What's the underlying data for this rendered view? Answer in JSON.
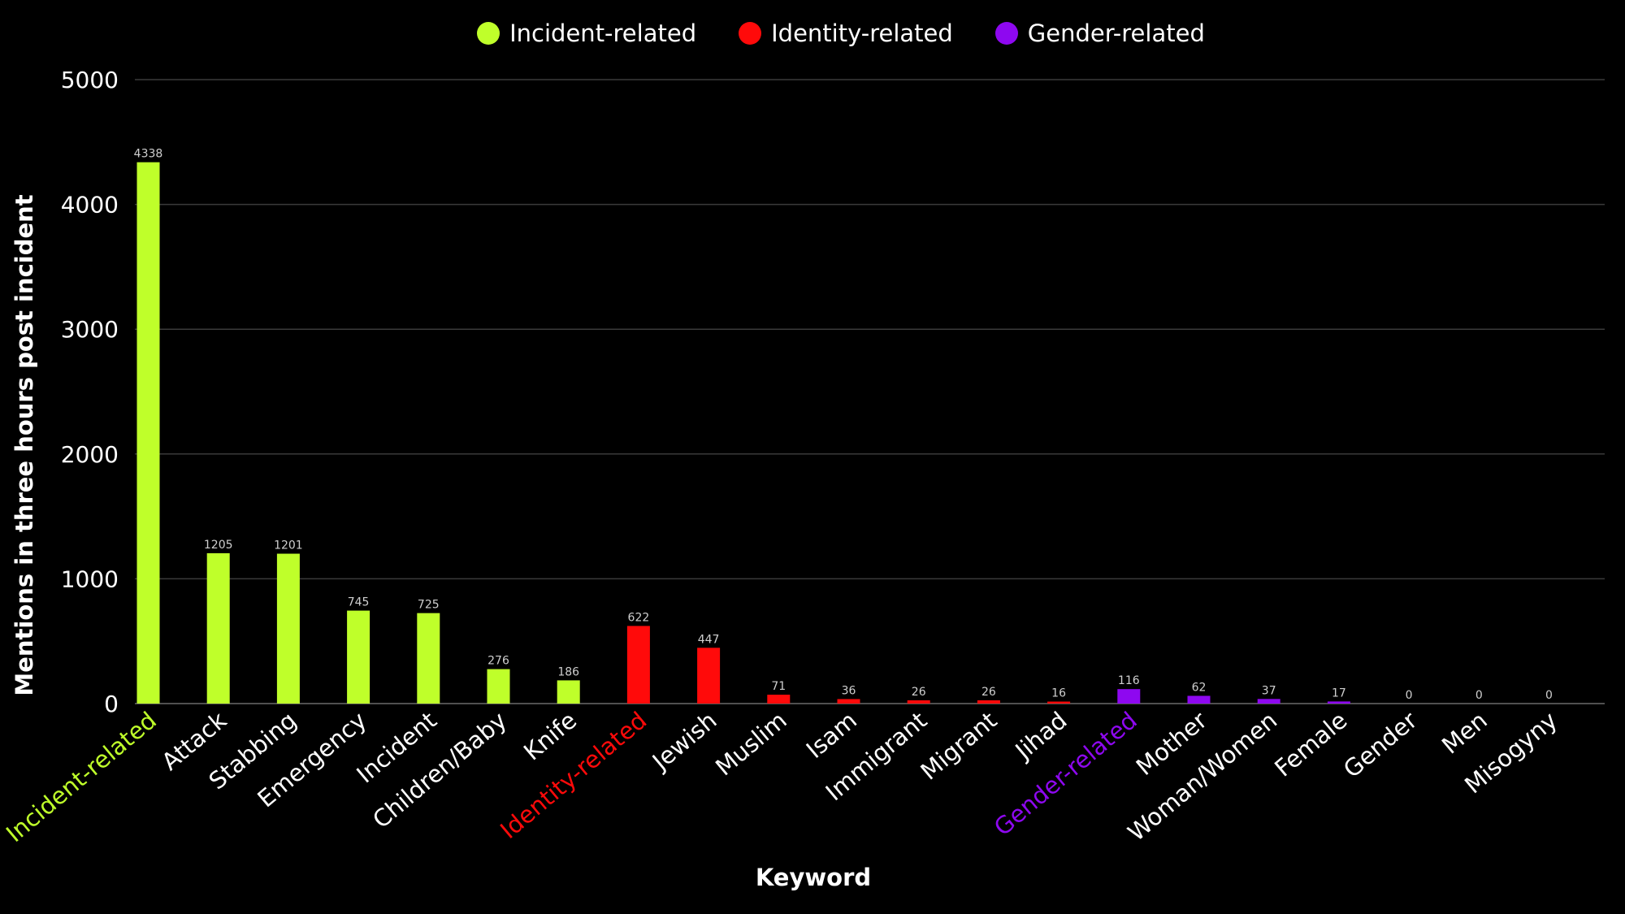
{
  "legend": [
    {
      "label": "Incident-related",
      "color": "#bfff2a"
    },
    {
      "label": "Identity-related",
      "color": "#ff0a0a"
    },
    {
      "label": "Gender-related",
      "color": "#8e08f0"
    }
  ],
  "chart_data": {
    "type": "bar",
    "title": "",
    "xlabel": "Keyword",
    "ylabel": "Mentions in three hours post incident",
    "ylim": [
      0,
      5000
    ],
    "yticks": [
      0,
      1000,
      2000,
      3000,
      4000,
      5000
    ],
    "grid": true,
    "legend_position": "top-center",
    "categories": [
      "Incident-related",
      "Attack",
      "Stabbing",
      "Emergency",
      "Incident",
      "Children/Baby",
      "Knife",
      "Identity-related",
      "Jewish",
      "Muslim",
      "Isam",
      "Immigrant",
      "Migrant",
      "Jihad",
      "Gender-related",
      "Mother",
      "Woman/Women",
      "Female",
      "Gender",
      "Men",
      "Misogyny"
    ],
    "values": [
      4338,
      1205,
      1201,
      745,
      725,
      276,
      186,
      622,
      447,
      71,
      36,
      26,
      26,
      16,
      116,
      62,
      37,
      17,
      0,
      0,
      0
    ],
    "value_labels": [
      "4338",
      "1205",
      "1201",
      "745",
      "725",
      "276",
      "186",
      "622",
      "447",
      "71",
      "36",
      "26",
      "26",
      "16",
      "116",
      "62",
      "37",
      "17",
      "0",
      "0",
      "0"
    ],
    "groups": [
      "incident",
      "incident",
      "incident",
      "incident",
      "incident",
      "incident",
      "incident",
      "identity",
      "identity",
      "identity",
      "identity",
      "identity",
      "identity",
      "identity",
      "gender",
      "gender",
      "gender",
      "gender",
      "gender",
      "gender",
      "gender"
    ],
    "group_header": [
      true,
      false,
      false,
      false,
      false,
      false,
      false,
      true,
      false,
      false,
      false,
      false,
      false,
      false,
      true,
      false,
      false,
      false,
      false,
      false,
      false
    ],
    "colors": {
      "incident": "#bfff2a",
      "identity": "#ff0a0a",
      "gender": "#8e08f0",
      "axis_text": "#ffffff",
      "grid": "#3a3a3a",
      "value_label": "#cfcfcf",
      "background": "#000000"
    }
  }
}
